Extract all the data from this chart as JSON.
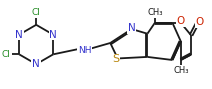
{
  "bg_color": "#ffffff",
  "line_color": "#1a1a1a",
  "n_color": "#3333cc",
  "s_color": "#b8860b",
  "o_color": "#cc2200",
  "cl_color": "#228B22",
  "lw": 1.3,
  "font_size": 6.5,
  "xlim": [
    0.5,
    11.2
  ],
  "ylim": [
    0.2,
    4.5
  ]
}
